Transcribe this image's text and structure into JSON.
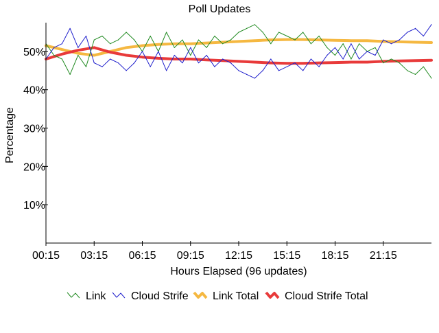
{
  "chart_data": {
    "type": "line",
    "title": "Poll Updates",
    "xlabel": "Hours Elapsed (96 updates)",
    "ylabel": "Percentage",
    "ylim": [
      0,
      57.5
    ],
    "xlim": [
      0,
      96
    ],
    "yticks": [
      {
        "value": 10,
        "label": "10%"
      },
      {
        "value": 20,
        "label": "20%"
      },
      {
        "value": 30,
        "label": "30%"
      },
      {
        "value": 40,
        "label": "40%"
      },
      {
        "value": 50,
        "label": "50%"
      }
    ],
    "xticks": [
      {
        "value": 0,
        "label": "00:15"
      },
      {
        "value": 12,
        "label": "03:15"
      },
      {
        "value": 24,
        "label": "06:15"
      },
      {
        "value": 36,
        "label": "09:15"
      },
      {
        "value": 48,
        "label": "12:15"
      },
      {
        "value": 60,
        "label": "15:15"
      },
      {
        "value": 72,
        "label": "18:15"
      },
      {
        "value": 84,
        "label": "21:15"
      }
    ],
    "grid": false,
    "legend_position": "bottom",
    "series": [
      {
        "name": "Link",
        "color": "#228B22",
        "style": "thin",
        "x": [
          0,
          2,
          4,
          6,
          8,
          10,
          12,
          14,
          16,
          18,
          20,
          22,
          24,
          26,
          28,
          30,
          32,
          34,
          36,
          38,
          40,
          42,
          44,
          46,
          48,
          50,
          52,
          54,
          56,
          58,
          60,
          62,
          64,
          66,
          68,
          70,
          72,
          74,
          76,
          78,
          80,
          82,
          84,
          86,
          88,
          90,
          92,
          94,
          96
        ],
        "values": [
          52,
          49,
          48,
          44,
          49,
          46,
          53,
          54,
          52,
          53,
          55,
          53,
          50,
          54,
          50,
          55,
          51,
          53,
          49,
          53,
          51,
          54,
          52,
          53,
          55,
          56,
          57,
          55,
          52,
          55,
          54,
          53,
          55,
          52,
          54,
          51,
          49,
          52,
          48,
          52,
          50,
          51,
          47,
          48,
          47,
          45,
          44,
          46,
          43
        ]
      },
      {
        "name": "Cloud Strife",
        "color": "#1f1fcc",
        "style": "thin",
        "x": [
          0,
          2,
          4,
          6,
          8,
          10,
          12,
          14,
          16,
          18,
          20,
          22,
          24,
          26,
          28,
          30,
          32,
          34,
          36,
          38,
          40,
          42,
          44,
          46,
          48,
          50,
          52,
          54,
          56,
          58,
          60,
          62,
          64,
          66,
          68,
          70,
          72,
          74,
          76,
          78,
          80,
          82,
          84,
          86,
          88,
          90,
          92,
          94,
          96
        ],
        "values": [
          48,
          51,
          52,
          56,
          51,
          54,
          47,
          46,
          48,
          47,
          45,
          47,
          50,
          46,
          50,
          45,
          49,
          47,
          51,
          47,
          49,
          46,
          48,
          47,
          45,
          44,
          43,
          45,
          48,
          45,
          46,
          47,
          45,
          48,
          46,
          49,
          51,
          48,
          52,
          48,
          50,
          49,
          53,
          52,
          53,
          55,
          56,
          54,
          57
        ]
      },
      {
        "name": "Link Total",
        "color": "#f5b841",
        "style": "thick",
        "x": [
          0,
          4,
          8,
          12,
          16,
          20,
          24,
          28,
          32,
          36,
          40,
          44,
          48,
          52,
          56,
          60,
          64,
          68,
          72,
          76,
          80,
          84,
          88,
          92,
          96
        ],
        "values": [
          51.5,
          50.5,
          49.5,
          49.0,
          50.0,
          51.0,
          51.5,
          51.8,
          52.0,
          52.0,
          52.2,
          52.4,
          52.6,
          52.8,
          53.0,
          53.1,
          53.1,
          53.0,
          52.9,
          52.8,
          52.8,
          52.6,
          52.5,
          52.4,
          52.3
        ]
      },
      {
        "name": "Cloud Strife Total",
        "color": "#e83a3a",
        "style": "thick",
        "x": [
          0,
          4,
          8,
          12,
          16,
          20,
          24,
          28,
          32,
          36,
          40,
          44,
          48,
          52,
          56,
          60,
          64,
          68,
          72,
          76,
          80,
          84,
          88,
          92,
          96
        ],
        "values": [
          48.0,
          49.3,
          50.3,
          51.0,
          49.8,
          49.0,
          48.5,
          48.2,
          48.0,
          48.0,
          47.8,
          47.6,
          47.4,
          47.2,
          47.0,
          46.9,
          46.9,
          47.0,
          47.1,
          47.2,
          47.2,
          47.4,
          47.5,
          47.6,
          47.7
        ]
      }
    ]
  }
}
